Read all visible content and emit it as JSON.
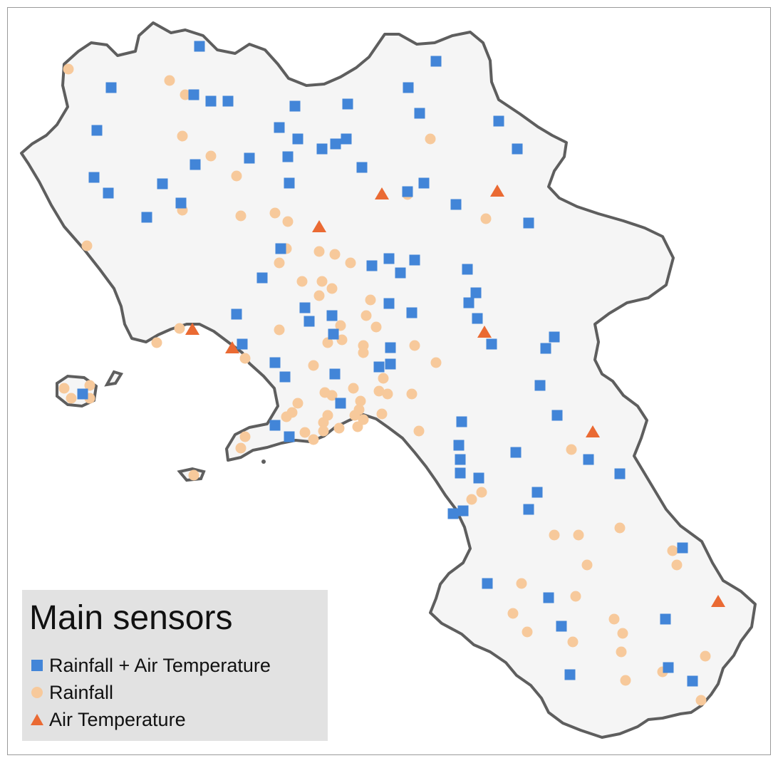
{
  "legend": {
    "title": "Main sensors",
    "items": [
      {
        "label": "Rainfall + Air Temperature",
        "symbol": "square",
        "color": "#4285d8"
      },
      {
        "label": "Rainfall",
        "symbol": "circle",
        "color": "#f7c99b"
      },
      {
        "label": "Air Temperature",
        "symbol": "triangle",
        "color": "#ea6a33"
      }
    ]
  },
  "colors": {
    "region_fill": "#f5f5f5",
    "region_stroke": "#5e5e5e",
    "frame": "#9a9a9a",
    "legend_bg": "#e2e2e2"
  }
}
